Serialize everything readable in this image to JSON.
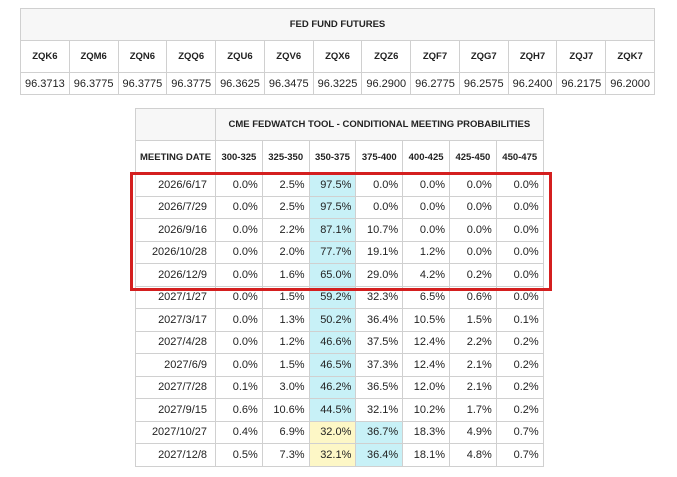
{
  "futures": {
    "title": "FED FUND FUTURES",
    "headers": [
      "ZQK6",
      "ZQM6",
      "ZQN6",
      "ZQQ6",
      "ZQU6",
      "ZQV6",
      "ZQX6",
      "ZQZ6",
      "ZQF7",
      "ZQG7",
      "ZQH7",
      "ZQJ7",
      "ZQK7"
    ],
    "values": [
      "96.3713",
      "96.3775",
      "96.3775",
      "96.3775",
      "96.3625",
      "96.3475",
      "96.3225",
      "96.2900",
      "96.2775",
      "96.2575",
      "96.2400",
      "96.2175",
      "96.2000"
    ]
  },
  "fedwatch": {
    "title": "CME FEDWATCH TOOL - CONDITIONAL MEETING PROBABILITIES",
    "headers": [
      "MEETING DATE",
      "300-325",
      "325-350",
      "350-375",
      "375-400",
      "400-425",
      "425-450",
      "450-475"
    ],
    "rows": [
      [
        "2026/6/17",
        "0.0%",
        "2.5%",
        "97.5%",
        "0.0%",
        "0.0%",
        "0.0%",
        "0.0%"
      ],
      [
        "2026/7/29",
        "0.0%",
        "2.5%",
        "97.5%",
        "0.0%",
        "0.0%",
        "0.0%",
        "0.0%"
      ],
      [
        "2026/9/16",
        "0.0%",
        "2.2%",
        "87.1%",
        "10.7%",
        "0.0%",
        "0.0%",
        "0.0%"
      ],
      [
        "2026/10/28",
        "0.0%",
        "2.0%",
        "77.7%",
        "19.1%",
        "1.2%",
        "0.0%",
        "0.0%"
      ],
      [
        "2026/12/9",
        "0.0%",
        "1.6%",
        "65.0%",
        "29.0%",
        "4.2%",
        "0.2%",
        "0.0%"
      ],
      [
        "2027/1/27",
        "0.0%",
        "1.5%",
        "59.2%",
        "32.3%",
        "6.5%",
        "0.6%",
        "0.0%"
      ],
      [
        "2027/3/17",
        "0.0%",
        "1.3%",
        "50.2%",
        "36.4%",
        "10.5%",
        "1.5%",
        "0.1%"
      ],
      [
        "2027/4/28",
        "0.0%",
        "1.2%",
        "46.6%",
        "37.5%",
        "12.4%",
        "2.2%",
        "0.2%"
      ],
      [
        "2027/6/9",
        "0.0%",
        "1.5%",
        "46.5%",
        "37.3%",
        "12.4%",
        "2.1%",
        "0.2%"
      ],
      [
        "2027/7/28",
        "0.1%",
        "3.0%",
        "46.2%",
        "36.5%",
        "12.0%",
        "2.1%",
        "0.2%"
      ],
      [
        "2027/9/15",
        "0.6%",
        "10.6%",
        "44.5%",
        "32.1%",
        "10.2%",
        "1.7%",
        "0.2%"
      ],
      [
        "2027/10/27",
        "0.4%",
        "6.9%",
        "32.0%",
        "36.7%",
        "18.3%",
        "4.9%",
        "0.7%"
      ],
      [
        "2027/12/8",
        "0.5%",
        "7.3%",
        "32.1%",
        "36.4%",
        "18.1%",
        "4.8%",
        "0.7%"
      ]
    ]
  }
}
